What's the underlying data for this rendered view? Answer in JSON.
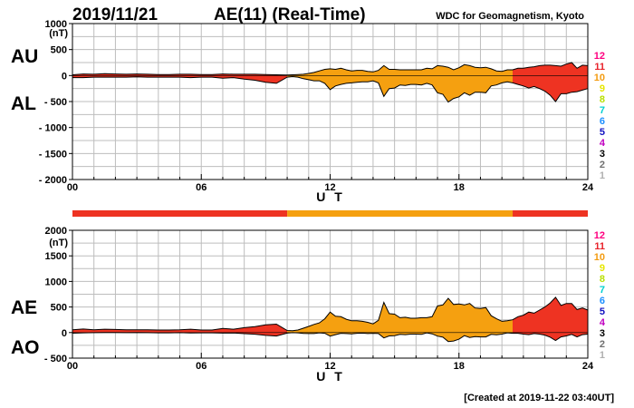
{
  "header": {
    "date": "2019/11/21",
    "title": "AE(11) (Real-Time)",
    "organization": "WDC for Geomagnetism, Kyoto"
  },
  "footer": {
    "created": "[Created at 2019-11-22 03:40UT]"
  },
  "labels": {
    "au": "AU",
    "al": "AL",
    "ae": "AE",
    "ao": "AO",
    "unit": "(nT)"
  },
  "station_scale": {
    "labels": [
      "12",
      "11",
      "10",
      "9",
      "8",
      "7",
      "6",
      "5",
      "4",
      "3",
      "2",
      "1"
    ],
    "colors": [
      "#ff0080",
      "#e8232b",
      "#f39c12",
      "#e6e600",
      "#b8e000",
      "#00d0d0",
      "#1e90ff",
      "#1010c0",
      "#c000c0",
      "#000000",
      "#707070",
      "#b0b0b0"
    ]
  },
  "colors": {
    "red": "#ee3322",
    "orange": "#f5a010",
    "outline": "#000000"
  },
  "chart_data": [
    {
      "type": "area",
      "name": "AU/AL",
      "xlabel": "U T",
      "ylabel": "(nT)",
      "xlim": [
        0,
        24
      ],
      "ylim": [
        -2000,
        1000
      ],
      "yticks": [
        1000,
        500,
        0,
        -500,
        -1000,
        -1500,
        -2000
      ],
      "ytick_labels": [
        "1000",
        "500",
        "0",
        "- 500",
        "- 1000",
        "- 1500",
        "- 2000"
      ],
      "xticks": [
        0,
        6,
        12,
        18,
        24
      ],
      "xtick_labels": [
        "00",
        "06",
        "12",
        "18",
        "24"
      ],
      "grid": true,
      "x_hours": [
        0,
        0.5,
        1,
        1.5,
        2,
        2.5,
        3,
        3.5,
        4,
        4.5,
        5,
        5.5,
        6,
        6.5,
        7,
        7.5,
        8,
        8.5,
        9,
        9.5,
        10,
        10.25,
        10.5,
        10.75,
        11,
        11.25,
        11.5,
        11.75,
        12,
        12.25,
        12.5,
        12.75,
        13,
        13.25,
        13.5,
        13.75,
        14,
        14.25,
        14.5,
        14.75,
        15,
        15.25,
        15.5,
        15.75,
        16,
        16.25,
        16.5,
        16.75,
        17,
        17.25,
        17.5,
        17.75,
        18,
        18.25,
        18.5,
        18.75,
        19,
        19.25,
        19.5,
        19.75,
        20,
        20.25,
        20.5,
        20.75,
        21,
        21.25,
        21.5,
        21.75,
        22,
        22.25,
        22.5,
        22.75,
        23,
        23.25,
        23.5,
        23.75,
        24
      ],
      "series": [
        {
          "name": "AU",
          "values": [
            15,
            30,
            25,
            35,
            30,
            25,
            30,
            25,
            20,
            20,
            25,
            25,
            20,
            20,
            30,
            25,
            25,
            25,
            20,
            15,
            10,
            15,
            20,
            25,
            40,
            60,
            90,
            120,
            130,
            120,
            140,
            110,
            90,
            100,
            100,
            80,
            70,
            100,
            190,
            120,
            120,
            110,
            110,
            110,
            110,
            110,
            140,
            130,
            190,
            180,
            160,
            110,
            150,
            210,
            190,
            160,
            150,
            160,
            130,
            90,
            80,
            110,
            110,
            140,
            140,
            160,
            170,
            190,
            200,
            200,
            190,
            180,
            220,
            250,
            140,
            200,
            190
          ]
        },
        {
          "name": "AL",
          "values": [
            -40,
            -40,
            -30,
            -30,
            -30,
            -30,
            -25,
            -30,
            -30,
            -30,
            -30,
            -40,
            -30,
            -30,
            -50,
            -40,
            -70,
            -90,
            -130,
            -150,
            -30,
            -20,
            -30,
            -60,
            -80,
            -100,
            -100,
            -150,
            -270,
            -200,
            -170,
            -150,
            -140,
            -130,
            -120,
            -120,
            -100,
            -140,
            -400,
            -250,
            -240,
            -180,
            -190,
            -170,
            -170,
            -180,
            -150,
            -180,
            -330,
            -360,
            -510,
            -440,
            -410,
            -330,
            -380,
            -320,
            -320,
            -330,
            -200,
            -180,
            -140,
            -120,
            -140,
            -170,
            -200,
            -240,
            -210,
            -250,
            -300,
            -380,
            -500,
            -350,
            -350,
            -320,
            -310,
            -280,
            -250
          ]
        }
      ],
      "activity_segments": [
        {
          "from": 0,
          "to": 10.0,
          "color": "red"
        },
        {
          "from": 10.0,
          "to": 20.5,
          "color": "orange"
        },
        {
          "from": 20.5,
          "to": 24,
          "color": "red"
        }
      ]
    },
    {
      "type": "area",
      "name": "AE/AO",
      "xlabel": "U T",
      "ylabel": "(nT)",
      "xlim": [
        0,
        24
      ],
      "ylim": [
        -500,
        2000
      ],
      "yticks": [
        2000,
        1500,
        1000,
        500,
        0,
        -500
      ],
      "ytick_labels": [
        "2000",
        "1500",
        "1000",
        "500",
        "0",
        "- 500"
      ],
      "xticks": [
        0,
        6,
        12,
        18,
        24
      ],
      "xtick_labels": [
        "00",
        "06",
        "12",
        "18",
        "24"
      ],
      "grid": true,
      "x_hours": [
        0,
        0.5,
        1,
        1.5,
        2,
        2.5,
        3,
        3.5,
        4,
        4.5,
        5,
        5.5,
        6,
        6.5,
        7,
        7.5,
        8,
        8.5,
        9,
        9.5,
        10,
        10.25,
        10.5,
        10.75,
        11,
        11.25,
        11.5,
        11.75,
        12,
        12.25,
        12.5,
        12.75,
        13,
        13.25,
        13.5,
        13.75,
        14,
        14.25,
        14.5,
        14.75,
        15,
        15.25,
        15.5,
        15.75,
        16,
        16.25,
        16.5,
        16.75,
        17,
        17.25,
        17.5,
        17.75,
        18,
        18.25,
        18.5,
        18.75,
        19,
        19.25,
        19.5,
        19.75,
        20,
        20.25,
        20.5,
        20.75,
        21,
        21.25,
        21.5,
        21.75,
        22,
        22.25,
        22.5,
        22.75,
        23,
        23.25,
        23.5,
        23.75,
        24
      ],
      "series": [
        {
          "name": "AE",
          "values": [
            55,
            70,
            55,
            65,
            60,
            55,
            55,
            55,
            50,
            50,
            55,
            65,
            50,
            50,
            80,
            65,
            95,
            115,
            150,
            165,
            40,
            35,
            50,
            85,
            120,
            160,
            190,
            270,
            400,
            320,
            310,
            260,
            230,
            230,
            220,
            200,
            170,
            240,
            590,
            370,
            360,
            290,
            300,
            280,
            280,
            290,
            290,
            310,
            520,
            540,
            670,
            550,
            560,
            540,
            570,
            480,
            470,
            490,
            330,
            270,
            220,
            230,
            250,
            310,
            340,
            400,
            380,
            440,
            500,
            580,
            690,
            530,
            570,
            570,
            450,
            480,
            440
          ]
        },
        {
          "name": "AO",
          "values": [
            -12,
            -5,
            -2,
            2,
            0,
            -2,
            2,
            -2,
            -5,
            -5,
            -2,
            -8,
            -5,
            -5,
            -10,
            -8,
            -22,
            -32,
            -55,
            -68,
            -10,
            -2,
            -5,
            -18,
            -20,
            -20,
            -5,
            -15,
            -70,
            -40,
            -15,
            -20,
            -25,
            -15,
            -10,
            -20,
            -15,
            -20,
            -105,
            -65,
            -60,
            -35,
            -40,
            -30,
            -30,
            -35,
            -5,
            -25,
            -70,
            -90,
            -175,
            -165,
            -130,
            -60,
            -95,
            -80,
            -85,
            -85,
            -35,
            -45,
            -30,
            -5,
            -15,
            -15,
            -30,
            -40,
            -20,
            -30,
            -50,
            -90,
            -155,
            -85,
            -65,
            -35,
            -85,
            -40,
            -30
          ]
        }
      ],
      "activity_segments": [
        {
          "from": 0,
          "to": 10.0,
          "color": "red"
        },
        {
          "from": 10.0,
          "to": 20.5,
          "color": "orange"
        },
        {
          "from": 20.5,
          "to": 24,
          "color": "red"
        }
      ]
    }
  ],
  "activity_bar": [
    {
      "from": 0,
      "to": 10.0,
      "color": "red"
    },
    {
      "from": 10.0,
      "to": 20.5,
      "color": "orange"
    },
    {
      "from": 20.5,
      "to": 24,
      "color": "red"
    }
  ]
}
